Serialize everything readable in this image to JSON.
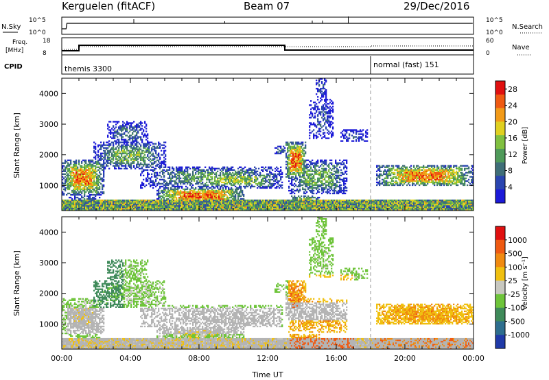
{
  "header": {
    "station": "Kerguelen (fitACF)",
    "beam": "Beam 07",
    "date": "29/Dec/2016"
  },
  "status_panels": {
    "nsky_label": "N.Sky",
    "nsearch_label": "N.Search",
    "freq_label_1": "Freq.",
    "freq_label_2": "[MHz]",
    "nave_label": "Nave",
    "cpid_label": "CPID",
    "nsky_ticks": [
      "10^5",
      "10^0"
    ],
    "nsearch_ticks": [
      "10^5",
      "10^0"
    ],
    "freq_ticks": [
      "18",
      "8"
    ],
    "nave_ticks": [
      "60",
      "0"
    ],
    "modes": [
      {
        "name": "themis 3300",
        "start_h": 0.0
      },
      {
        "name": "normal (fast) 151",
        "start_h": 18.0
      }
    ]
  },
  "chart_data": [
    {
      "type": "heatmap",
      "title": "Power",
      "xlabel": "",
      "ylabel": "Slant Range [km]",
      "colorbar_label": "Power [dB]",
      "xlim": [
        0,
        24
      ],
      "ylim": [
        180,
        4500
      ],
      "x_tick_labels": [
        "00:00",
        "04:00",
        "08:00",
        "12:00",
        "16:00",
        "20:00",
        "00:00"
      ],
      "y_tick_labels": [
        "1000",
        "2000",
        "3000",
        "4000"
      ],
      "colorbar_ticks": [
        "4",
        "8",
        "12",
        "16",
        "20",
        "24",
        "28"
      ],
      "clim": [
        0,
        30
      ],
      "colors": [
        "#1c1ad8",
        "#2a45b0",
        "#3f6e78",
        "#4f9a5a",
        "#80c040",
        "#e0d020",
        "#f29a18",
        "#ef5a12",
        "#e01010"
      ]
    },
    {
      "type": "heatmap",
      "title": "Velocity",
      "xlabel": "Time UT",
      "ylabel": "Slant Range [km]",
      "colorbar_label": "Velocity [m s⁻¹]",
      "xlim": [
        0,
        24
      ],
      "ylim": [
        180,
        4500
      ],
      "x_tick_labels": [
        "00:00",
        "04:00",
        "08:00",
        "12:00",
        "16:00",
        "20:00",
        "00:00"
      ],
      "y_tick_labels": [
        "1000",
        "2000",
        "3000",
        "4000"
      ],
      "colorbar_ticks": [
        "1000",
        "500",
        "100",
        "25",
        "-25",
        "-100",
        "-500",
        "-1000"
      ],
      "colors": [
        "#203aa8",
        "#2e6e8e",
        "#3f8a5a",
        "#6ec43a",
        "#c8c8c0",
        "#f0c010",
        "#f08a10",
        "#ef5a12",
        "#e01010"
      ]
    }
  ],
  "colors": {
    "ground_scatter": "#b4b4b4",
    "frame": "#000000"
  }
}
